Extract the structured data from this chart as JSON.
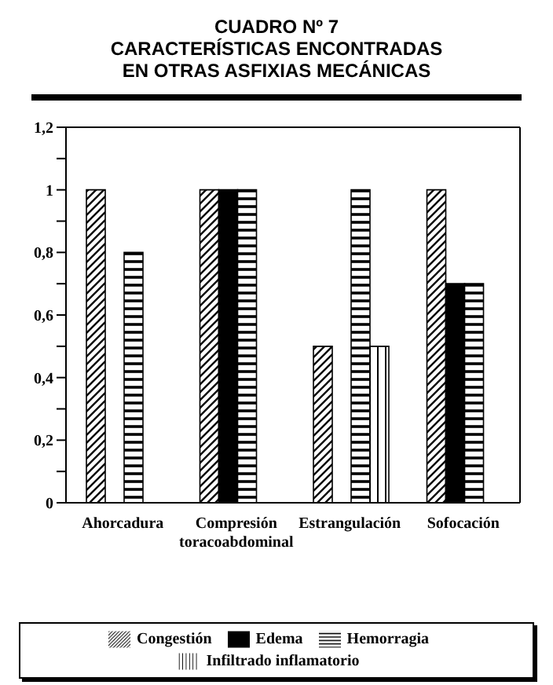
{
  "chart_data": {
    "type": "bar",
    "title": "CUADRO Nº 7",
    "subtitle": "CARACTERÍSTICAS ENCONTRADAS EN OTRAS ASFIXIAS MECÁNICAS",
    "categories": [
      "Ahorcadura",
      "Compresión toracoabdominal",
      "Estrangulación",
      "Sofocación"
    ],
    "series": [
      {
        "name": "Congestión",
        "color": "#000000",
        "values": [
          1,
          1,
          0.5,
          1
        ]
      },
      {
        "name": "Edema",
        "color": "#000000",
        "values": [
          0,
          1,
          0,
          0.7
        ]
      },
      {
        "name": "Hemorragia",
        "color": "#000000",
        "values": [
          0.8,
          1,
          1,
          0.7
        ]
      },
      {
        "name": "Infiltrado inflamatorio",
        "color": "#000000",
        "values": [
          0,
          0,
          0.5,
          0
        ]
      }
    ],
    "ylim": [
      0,
      1.2
    ],
    "yticks": [
      0,
      {
        "value": 0.1,
        "label": null
      },
      {
        "value": 0.2,
        "label": "0,2"
      },
      {
        "value": 0.3,
        "label": null
      },
      {
        "value": 0.4,
        "label": "0,4"
      },
      {
        "value": 0.5,
        "label": null
      },
      {
        "value": 0.6,
        "label": "0,6"
      },
      {
        "value": 0.7,
        "label": null
      },
      {
        "value": 0.8,
        "label": "0,8"
      },
      {
        "value": 0.9,
        "label": null
      },
      1,
      {
        "value": 1.1,
        "label": null
      },
      {
        "value": 1.2,
        "label": "1,2"
      }
    ],
    "legend": "bottom"
  }
}
